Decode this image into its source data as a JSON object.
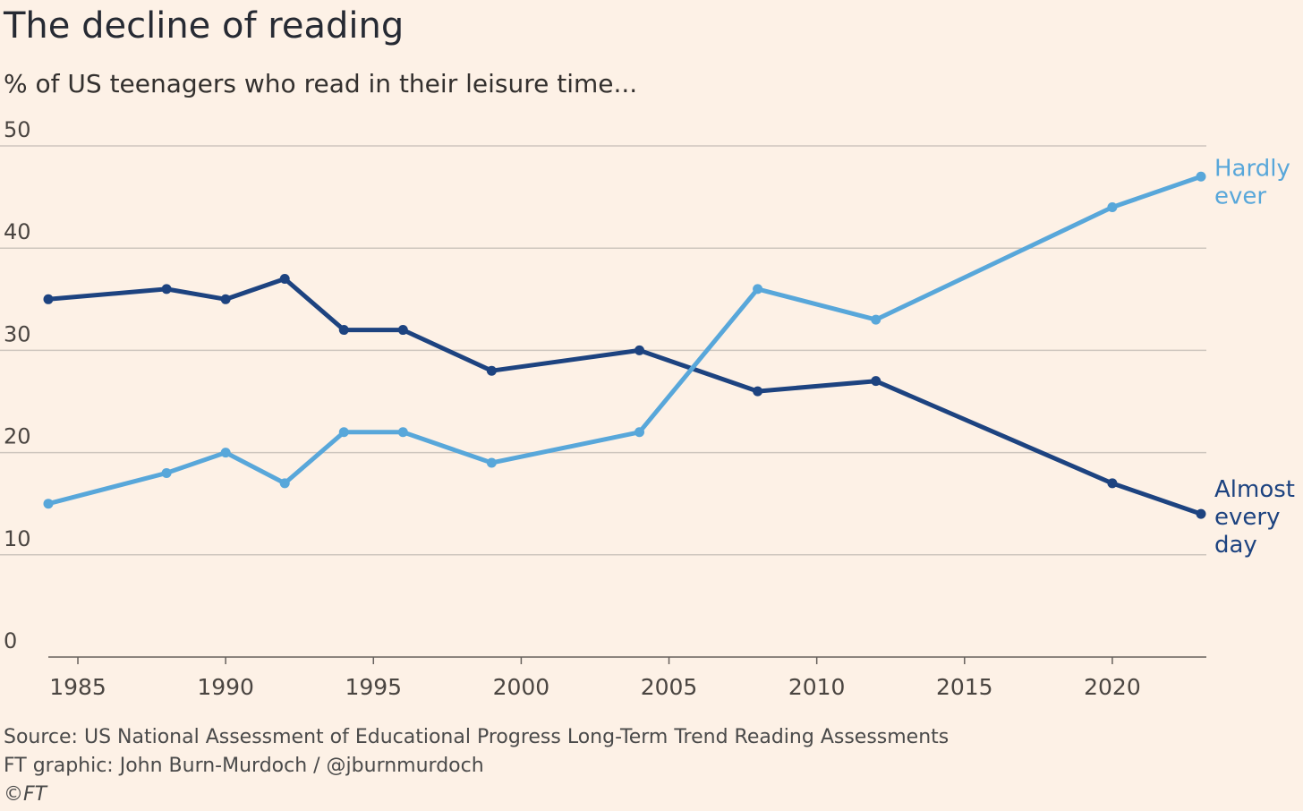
{
  "header": {
    "title": "The decline of reading",
    "subtitle": "% of US teenagers who read in their leisure time..."
  },
  "footer": {
    "source": "Source: US National Assessment of Educational Progress Long-Term Trend Reading Assessments",
    "credit": "FT graphic: John Burn-Murdoch / @jburnmurdoch",
    "copyright": "©FT"
  },
  "colors": {
    "background": "#FDF1E6",
    "gridline": "#CEC6BE",
    "axis": "#66605C",
    "hardly_ever": "#58A7DA",
    "almost_every_day": "#1D4380"
  },
  "chart_data": {
    "type": "line",
    "title": "The decline of reading",
    "subtitle": "% of US teenagers who read in their leisure time...",
    "xlabel": "",
    "ylabel": "",
    "xlim": [
      1984,
      2023
    ],
    "ylim": [
      0,
      50
    ],
    "x_ticks": [
      1985,
      1990,
      1995,
      2000,
      2005,
      2010,
      2015,
      2020
    ],
    "y_ticks": [
      0,
      10,
      20,
      30,
      40,
      50
    ],
    "grid": true,
    "legend": "inline labels at right end of each line",
    "series": [
      {
        "name": "Almost every day",
        "label_lines": [
          "Almost",
          "every",
          "day"
        ],
        "color": "#1D4380",
        "x": [
          1984,
          1988,
          1990,
          1992,
          1994,
          1996,
          1999,
          2004,
          2008,
          2012,
          2020,
          2023
        ],
        "values": [
          35,
          36,
          35,
          37,
          32,
          32,
          28,
          30,
          26,
          27,
          17,
          14
        ]
      },
      {
        "name": "Hardly ever",
        "label_lines": [
          "Hardly",
          "ever"
        ],
        "color": "#58A7DA",
        "x": [
          1984,
          1988,
          1990,
          1992,
          1994,
          1996,
          1999,
          2004,
          2008,
          2012,
          2020,
          2023
        ],
        "values": [
          15,
          18,
          20,
          17,
          22,
          22,
          19,
          22,
          36,
          33,
          44,
          47
        ]
      }
    ]
  }
}
